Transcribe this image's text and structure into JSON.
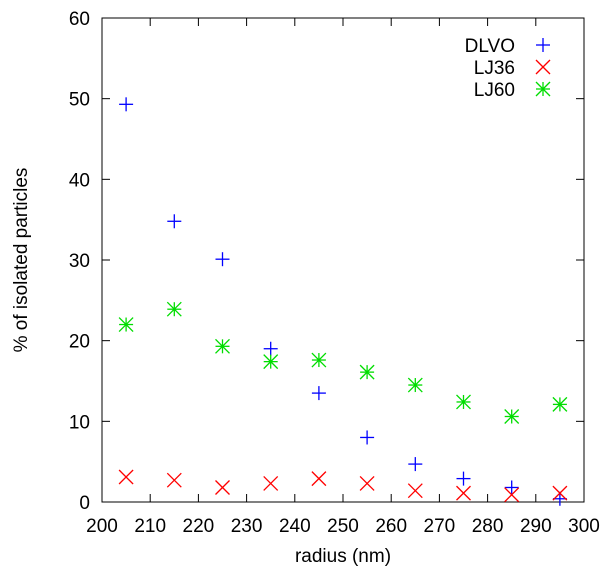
{
  "chart_data": {
    "type": "scatter",
    "xlabel": "radius (nm)",
    "ylabel": "% of isolated particles",
    "xlim": [
      200,
      300
    ],
    "ylim": [
      0,
      60
    ],
    "xticks": [
      "200",
      "210",
      "220",
      "230",
      "240",
      "250",
      "260",
      "270",
      "280",
      "290",
      "300"
    ],
    "yticks": [
      "0",
      "10",
      "20",
      "30",
      "40",
      "50",
      "60"
    ],
    "grid": false,
    "legend_position": "top-right",
    "series": [
      {
        "name": "DLVO",
        "marker": "plus",
        "color": "#0000ff",
        "x": [
          205,
          215,
          225,
          235,
          245,
          255,
          265,
          275,
          285,
          295
        ],
        "y": [
          49.3,
          34.8,
          30.1,
          19.0,
          13.5,
          8.0,
          4.7,
          2.9,
          1.8,
          0.4
        ]
      },
      {
        "name": "LJ36",
        "marker": "cross",
        "color": "#ff0000",
        "x": [
          205,
          215,
          225,
          235,
          245,
          255,
          265,
          275,
          285,
          295
        ],
        "y": [
          3.1,
          2.7,
          1.8,
          2.3,
          2.9,
          2.3,
          1.4,
          1.1,
          0.9,
          1.1
        ]
      },
      {
        "name": "LJ60",
        "marker": "star",
        "color": "#00dd00",
        "x": [
          205,
          215,
          225,
          235,
          245,
          255,
          265,
          275,
          285,
          295
        ],
        "y": [
          22.0,
          23.9,
          19.3,
          17.4,
          17.6,
          16.1,
          14.5,
          12.4,
          10.6,
          12.1
        ]
      }
    ]
  }
}
